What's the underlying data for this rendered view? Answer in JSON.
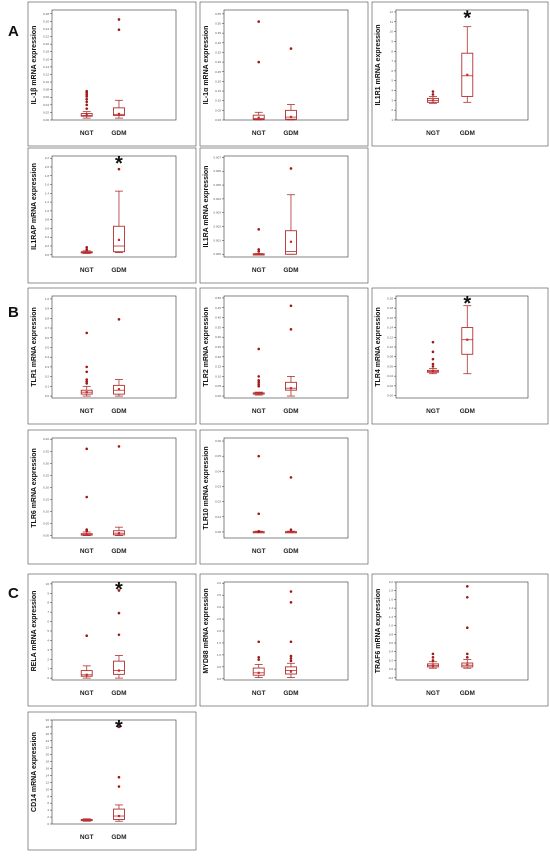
{
  "colors": {
    "box": "#b03030",
    "outlier": "#a01818",
    "mean": "#d02828",
    "frame": "#4a4a4a"
  },
  "panel_letters": [
    "A",
    "B",
    "C"
  ],
  "chart_data": [
    {
      "type": "box",
      "ylabel": "IL-1β mRNA expression",
      "categories": [
        "NGT",
        "GDM"
      ],
      "yticks": [
        "0.00",
        "0.02",
        "0.04",
        "0.06",
        "0.08",
        "0.10",
        "0.12",
        "0.14",
        "0.16",
        "0.18",
        "0.20",
        "0.22",
        "0.24",
        "0.26",
        "0.28"
      ],
      "ylim": [
        0,
        0.29
      ],
      "boxes": [
        {
          "min": 0.005,
          "q1": 0.01,
          "median": 0.012,
          "q3": 0.017,
          "max": 0.022,
          "mean": 0.013,
          "outliers": [
            0.03,
            0.04,
            0.048,
            0.055,
            0.062,
            0.067,
            0.072,
            0.076
          ]
        },
        {
          "min": 0.005,
          "q1": 0.012,
          "median": 0.015,
          "q3": 0.032,
          "max": 0.052,
          "mean": 0.016,
          "outliers": [
            0.238,
            0.265
          ]
        }
      ],
      "significant": [
        false,
        false
      ]
    },
    {
      "type": "box",
      "ylabel": "IL-1α mRNA expression",
      "categories": [
        "NGT",
        "GDM"
      ],
      "yticks": [
        "0.00",
        "0.05",
        "0.10",
        "0.15",
        "0.20",
        "0.25",
        "0.30",
        "0.35",
        "0.40",
        "0.45",
        "0.50",
        "0.55"
      ],
      "ylim": [
        0,
        0.57
      ],
      "boxes": [
        {
          "min": 0.0,
          "q1": 0.003,
          "median": 0.008,
          "q3": 0.025,
          "max": 0.04,
          "mean": 0.012,
          "outliers": [
            0.3,
            0.51
          ]
        },
        {
          "min": 0.0,
          "q1": 0.004,
          "median": 0.015,
          "q3": 0.05,
          "max": 0.08,
          "mean": 0.016,
          "outliers": [
            0.37
          ]
        }
      ],
      "significant": [
        false,
        false
      ]
    },
    {
      "type": "box",
      "ylabel": "IL1R1 mRNA expression",
      "categories": [
        "NGT",
        "GDM"
      ],
      "yticks": [
        "1",
        "2",
        "3",
        "4",
        "5",
        "6",
        "7",
        "8",
        "9",
        "10",
        "11",
        "12"
      ],
      "ylim": [
        1,
        12.2
      ],
      "boxes": [
        {
          "min": 2.7,
          "q1": 2.8,
          "median": 3.0,
          "q3": 3.2,
          "max": 3.4,
          "mean": 3.0,
          "outliers": [
            3.6,
            3.9
          ]
        },
        {
          "min": 2.8,
          "q1": 3.4,
          "median": 5.5,
          "q3": 7.8,
          "max": 10.5,
          "mean": 5.6,
          "outliers": []
        }
      ],
      "significant": [
        false,
        true
      ]
    },
    {
      "type": "box",
      "ylabel": "IL1RAP mRNA expression",
      "categories": [
        "NGT",
        "GDM"
      ],
      "yticks": [
        "0.0",
        "0.2",
        "0.4",
        "0.6",
        "0.8",
        "1.0",
        "1.2",
        "1.4",
        "1.6",
        "1.8",
        "2.0",
        "2.2"
      ],
      "ylim": [
        -0.05,
        2.25
      ],
      "boxes": [
        {
          "min": 0.03,
          "q1": 0.05,
          "median": 0.06,
          "q3": 0.07,
          "max": 0.09,
          "mean": 0.06,
          "outliers": [
            0.12,
            0.17
          ]
        },
        {
          "min": 0.05,
          "q1": 0.07,
          "median": 0.2,
          "q3": 0.65,
          "max": 1.45,
          "mean": 0.34,
          "outliers": [
            1.95
          ]
        }
      ],
      "significant": [
        false,
        true
      ]
    },
    {
      "type": "box",
      "ylabel": "IL1RA mRNA expression",
      "categories": [
        "NGT",
        "GDM"
      ],
      "yticks": [
        "0.000",
        "0.001",
        "0.002",
        "0.003",
        "0.004",
        "0.005",
        "0.006",
        "0.007"
      ],
      "ylim": [
        -0.0002,
        0.0071
      ],
      "boxes": [
        {
          "min": 0.0,
          "q1": 0.0,
          "median": 0.0,
          "q3": 3e-05,
          "max": 5e-05,
          "mean": 0.0,
          "outliers": [
            0.0002,
            0.00035,
            0.0018
          ]
        },
        {
          "min": 0.0,
          "q1": 0.0,
          "median": 0.0002,
          "q3": 0.0017,
          "max": 0.0043,
          "mean": 0.0009,
          "outliers": [
            0.0062
          ]
        }
      ],
      "significant": [
        false,
        false
      ]
    },
    {
      "type": "box",
      "ylabel": "TLR1 mRNA expression",
      "categories": [
        "NGT",
        "GDM"
      ],
      "yticks": [
        "0.0",
        "0.1",
        "0.2",
        "0.3",
        "0.4",
        "0.5",
        "0.6",
        "0.7",
        "0.8",
        "0.9",
        "1.0"
      ],
      "ylim": [
        -0.02,
        1.03
      ],
      "boxes": [
        {
          "min": 0.0,
          "q1": 0.02,
          "median": 0.04,
          "q3": 0.06,
          "max": 0.1,
          "mean": 0.04,
          "outliers": [
            0.13,
            0.15,
            0.17,
            0.25,
            0.3,
            0.65
          ]
        },
        {
          "min": 0.0,
          "q1": 0.02,
          "median": 0.06,
          "q3": 0.11,
          "max": 0.17,
          "mean": 0.07,
          "outliers": [
            0.79
          ]
        }
      ],
      "significant": [
        false,
        false
      ]
    },
    {
      "type": "box",
      "ylabel": "TLR2 mRNA expression",
      "categories": [
        "NGT",
        "GDM"
      ],
      "yticks": [
        "0.00",
        "0.05",
        "0.10",
        "0.15",
        "0.20",
        "0.25",
        "0.30",
        "0.35",
        "0.40",
        "0.45",
        "0.50"
      ],
      "ylim": [
        -0.01,
        0.51
      ],
      "boxes": [
        {
          "min": 0.005,
          "q1": 0.01,
          "median": 0.012,
          "q3": 0.016,
          "max": 0.02,
          "mean": 0.013,
          "outliers": [
            0.05,
            0.06,
            0.07,
            0.08,
            0.1,
            0.24
          ]
        },
        {
          "min": 0.0,
          "q1": 0.03,
          "median": 0.04,
          "q3": 0.07,
          "max": 0.1,
          "mean": 0.04,
          "outliers": [
            0.34,
            0.46
          ]
        }
      ],
      "significant": [
        false,
        false
      ]
    },
    {
      "type": "box",
      "ylabel": "TLR4 mRNA expression",
      "categories": [
        "NGT",
        "GDM"
      ],
      "yticks": [
        "0.00",
        "0.02",
        "0.04",
        "0.06",
        "0.08",
        "0.10",
        "0.12",
        "0.14",
        "0.16",
        "0.18",
        "0.20"
      ],
      "ylim": [
        -0.005,
        0.205
      ],
      "boxes": [
        {
          "min": 0.045,
          "q1": 0.048,
          "median": 0.05,
          "q3": 0.052,
          "max": 0.056,
          "mean": 0.05,
          "outliers": [
            0.06,
            0.065,
            0.075,
            0.09,
            0.11
          ]
        },
        {
          "min": 0.045,
          "q1": 0.085,
          "median": 0.115,
          "q3": 0.14,
          "max": 0.185,
          "mean": 0.115,
          "outliers": []
        }
      ],
      "significant": [
        false,
        true
      ]
    },
    {
      "type": "box",
      "ylabel": "TLR6 mRNA expression",
      "categories": [
        "NGT",
        "GDM"
      ],
      "yticks": [
        "0.00",
        "0.05",
        "0.10",
        "0.15",
        "0.20",
        "0.25",
        "0.30",
        "0.35",
        "0.40"
      ],
      "ylim": [
        -0.01,
        0.405
      ],
      "boxes": [
        {
          "min": 0.0,
          "q1": 0.002,
          "median": 0.004,
          "q3": 0.008,
          "max": 0.015,
          "mean": 0.005,
          "outliers": [
            0.02,
            0.025,
            0.16,
            0.36
          ]
        },
        {
          "min": 0.0,
          "q1": 0.003,
          "median": 0.01,
          "q3": 0.02,
          "max": 0.035,
          "mean": 0.01,
          "outliers": [
            0.37
          ]
        }
      ],
      "significant": [
        false,
        false
      ]
    },
    {
      "type": "box",
      "ylabel": "TLR10 mRNA expression",
      "categories": [
        "NGT",
        "GDM"
      ],
      "yticks": [
        "0.00",
        "0.01",
        "0.02",
        "0.03",
        "0.04",
        "0.05",
        "0.06"
      ],
      "ylim": [
        -0.004,
        0.062
      ],
      "boxes": [
        {
          "min": 0.0,
          "q1": 0.0,
          "median": 0.0,
          "q3": 0.0002,
          "max": 0.0005,
          "mean": 0.0001,
          "outliers": [
            0.0004,
            0.012,
            0.05
          ]
        },
        {
          "min": 0.0,
          "q1": 0.0,
          "median": 0.0,
          "q3": 0.0002,
          "max": 0.0005,
          "mean": 0.0001,
          "outliers": [
            0.0015,
            0.036
          ]
        }
      ],
      "significant": [
        false,
        false
      ]
    },
    {
      "type": "box",
      "ylabel": "RELA mRNA expression",
      "categories": [
        "NGT",
        "GDM"
      ],
      "yticks": [
        "0",
        "1",
        "2",
        "3",
        "4",
        "5",
        "6",
        "7",
        "8",
        "9",
        "10"
      ],
      "ylim": [
        -0.2,
        10.2
      ],
      "boxes": [
        {
          "min": 0.0,
          "q1": 0.2,
          "median": 0.35,
          "q3": 0.8,
          "max": 1.3,
          "mean": 0.35,
          "outliers": [
            4.5
          ]
        },
        {
          "min": 0.0,
          "q1": 0.4,
          "median": 0.8,
          "q3": 1.8,
          "max": 2.4,
          "mean": 0.8,
          "outliers": [
            4.6,
            6.9,
            9.3
          ]
        }
      ],
      "significant": [
        false,
        true
      ]
    },
    {
      "type": "box",
      "ylabel": "MYD88 mRNA expression",
      "categories": [
        "NGT",
        "GDM"
      ],
      "yticks": [
        "0.0",
        "0.5",
        "1.0",
        "1.5",
        "2.0",
        "2.5",
        "3.0",
        "3.5",
        "4.0"
      ],
      "ylim": [
        -0.05,
        4.05
      ],
      "boxes": [
        {
          "min": 0.05,
          "q1": 0.15,
          "median": 0.25,
          "q3": 0.45,
          "max": 0.6,
          "mean": 0.25,
          "outliers": [
            0.8,
            0.9,
            1.55
          ]
        },
        {
          "min": 0.05,
          "q1": 0.2,
          "median": 0.35,
          "q3": 0.5,
          "max": 0.65,
          "mean": 0.3,
          "outliers": [
            0.75,
            0.85,
            0.95,
            1.55,
            3.2,
            3.65
          ]
        }
      ],
      "significant": [
        false,
        false
      ]
    },
    {
      "type": "box",
      "ylabel": "TRAF6 mRNA expression",
      "categories": [
        "NGT",
        "GDM"
      ],
      "yticks": [
        "-0.2",
        "0.0",
        "0.2",
        "0.4",
        "0.6",
        "0.8",
        "1.0",
        "1.2",
        "1.4",
        "1.6",
        "1.8",
        "2.0"
      ],
      "ylim": [
        -0.25,
        2.0
      ],
      "boxes": [
        {
          "min": 0.02,
          "q1": 0.05,
          "median": 0.08,
          "q3": 0.12,
          "max": 0.17,
          "mean": 0.08,
          "outliers": [
            0.2,
            0.27,
            0.35
          ]
        },
        {
          "min": 0.02,
          "q1": 0.05,
          "median": 0.09,
          "q3": 0.14,
          "max": 0.22,
          "mean": 0.1,
          "outliers": [
            0.27,
            0.35,
            0.95,
            1.65,
            1.9
          ]
        }
      ],
      "significant": [
        false,
        false
      ]
    },
    {
      "type": "box",
      "ylabel": "CD14 mRNA expression",
      "categories": [
        "NGT",
        "GDM"
      ],
      "yticks": [
        "0",
        "2",
        "4",
        "6",
        "8",
        "10",
        "12",
        "14",
        "16",
        "18",
        "20",
        "22",
        "24",
        "26",
        "28",
        "30"
      ],
      "ylim": [
        0,
        30
      ],
      "boxes": [
        {
          "min": 0.8,
          "q1": 1.0,
          "median": 1.1,
          "q3": 1.3,
          "max": 1.5,
          "mean": 1.1,
          "outliers": []
        },
        {
          "min": 0.8,
          "q1": 1.3,
          "median": 2.3,
          "q3": 4.3,
          "max": 5.5,
          "mean": 2.3,
          "outliers": [
            10.8,
            13.5,
            28.0
          ]
        }
      ],
      "significant": [
        false,
        true
      ]
    }
  ]
}
